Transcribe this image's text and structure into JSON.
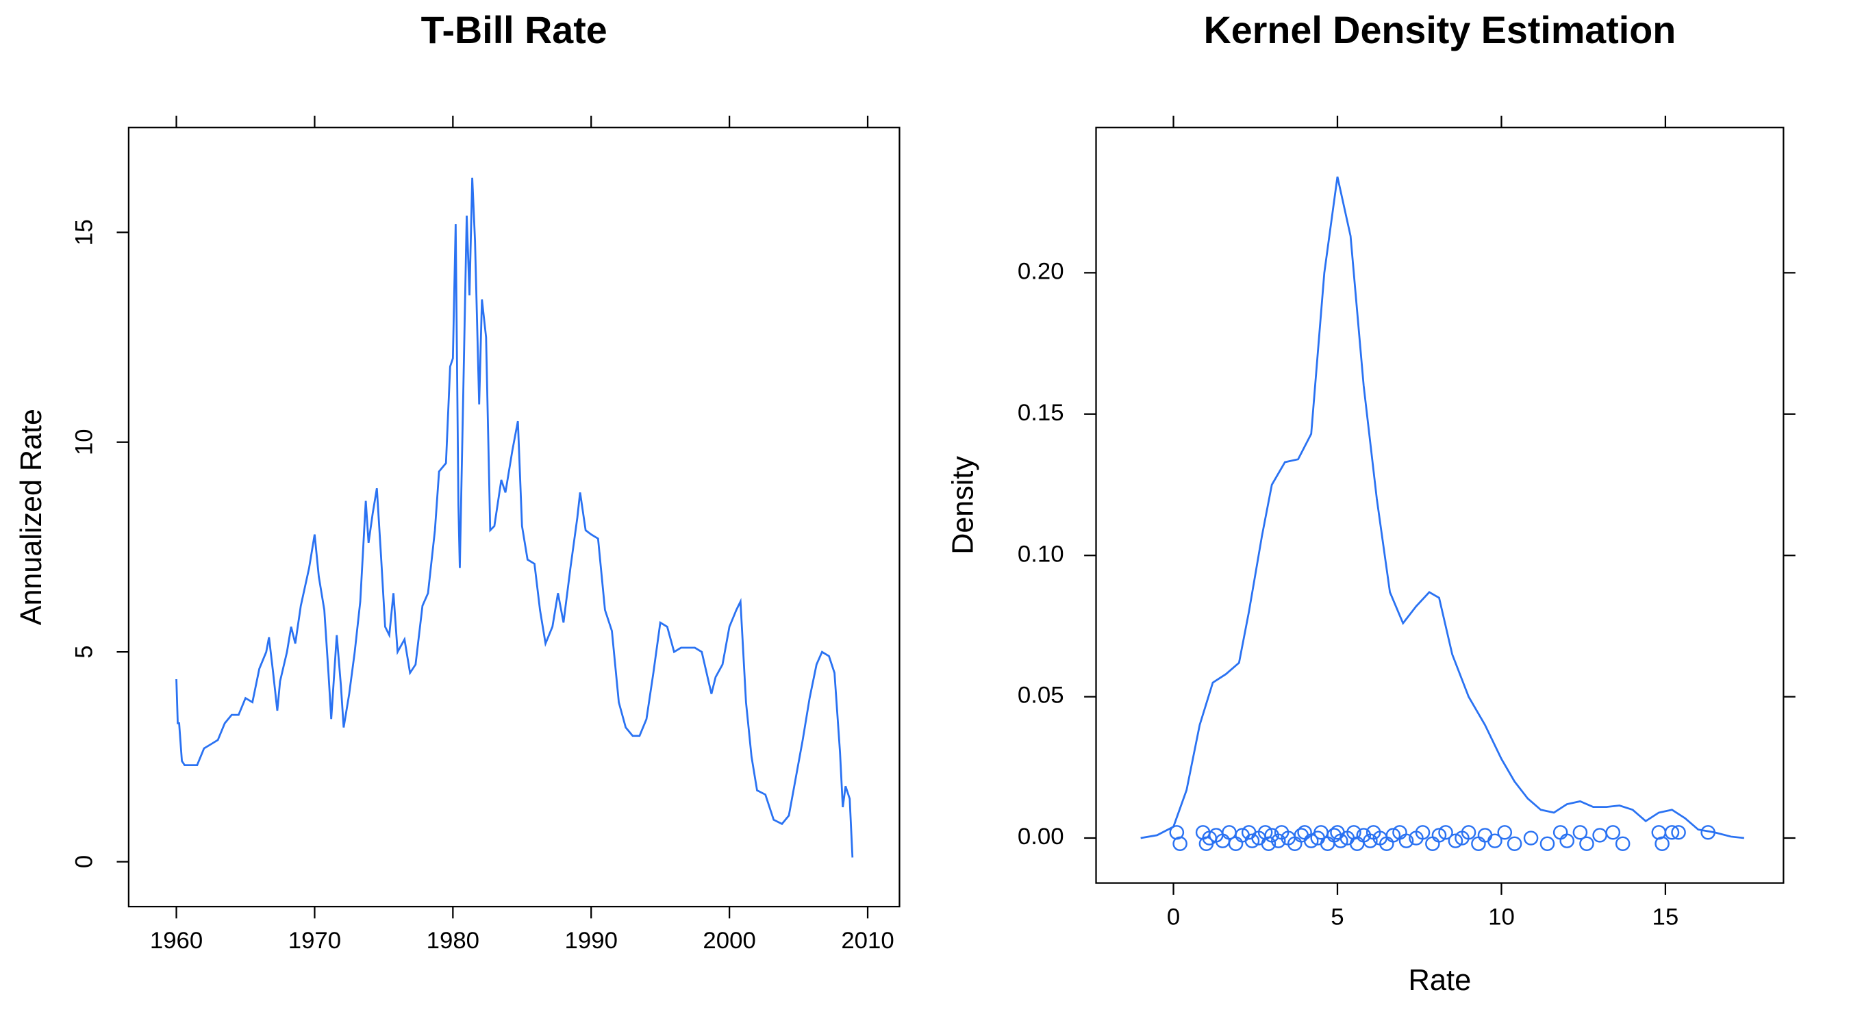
{
  "chart_data": [
    {
      "type": "line",
      "title": "T-Bill Rate",
      "ylabel": "Annualized Rate",
      "color": "#2a72f2",
      "x": [
        1960.0,
        1960.1,
        1960.2,
        1960.4,
        1960.6,
        1961,
        1961.5,
        1962,
        1962.5,
        1963,
        1963.5,
        1964,
        1964.5,
        1965,
        1965.5,
        1966,
        1966.5,
        1966.7,
        1967,
        1967.3,
        1967.5,
        1968,
        1968.3,
        1968.6,
        1969,
        1969.6,
        1970,
        1970.3,
        1970.7,
        1971,
        1971.2,
        1971.6,
        1971.9,
        1972.1,
        1972.5,
        1972.9,
        1973.3,
        1973.7,
        1973.9,
        1974.2,
        1974.5,
        1974.8,
        1975.1,
        1975.4,
        1975.7,
        1976,
        1976.5,
        1976.9,
        1977.3,
        1977.8,
        1978.2,
        1978.7,
        1979,
        1979.5,
        1979.8,
        1980.0,
        1980.2,
        1980.4,
        1980.5,
        1980.8,
        1981.0,
        1981.2,
        1981.4,
        1981.6,
        1981.9,
        1982.1,
        1982.4,
        1982.7,
        1983,
        1983.5,
        1983.8,
        1984.3,
        1984.7,
        1985,
        1985.4,
        1985.9,
        1986.3,
        1986.7,
        1987.2,
        1987.6,
        1988,
        1988.5,
        1989,
        1989.2,
        1989.6,
        1990,
        1990.5,
        1991,
        1991.5,
        1992,
        1992.5,
        1993,
        1993.5,
        1994,
        1994.5,
        1995,
        1995.5,
        1996,
        1996.5,
        1997,
        1997.5,
        1998,
        1998.7,
        1999,
        1999.5,
        2000,
        2000.5,
        2000.8,
        2001.2,
        2001.6,
        2002,
        2002.6,
        2003.2,
        2003.8,
        2004.3,
        2004.8,
        2005.3,
        2005.8,
        2006.3,
        2006.7,
        2007.2,
        2007.6,
        2008,
        2008.2,
        2008.4,
        2008.7,
        2008.9
      ],
      "values": [
        4.35,
        3.3,
        3.3,
        2.4,
        2.3,
        2.3,
        2.3,
        2.7,
        2.8,
        2.9,
        3.3,
        3.5,
        3.5,
        3.9,
        3.8,
        4.6,
        5.0,
        5.35,
        4.5,
        3.6,
        4.3,
        5.0,
        5.6,
        5.2,
        6.1,
        7.0,
        7.8,
        6.8,
        6.0,
        4.5,
        3.4,
        5.4,
        4.2,
        3.2,
        4.0,
        5.0,
        6.2,
        8.6,
        7.6,
        8.3,
        8.9,
        7.3,
        5.6,
        5.4,
        6.4,
        5.0,
        5.3,
        4.5,
        4.7,
        6.1,
        6.4,
        7.9,
        9.3,
        9.5,
        11.8,
        12.0,
        15.2,
        8.5,
        7.0,
        12.0,
        15.4,
        13.5,
        16.3,
        14.8,
        10.9,
        13.4,
        12.5,
        7.9,
        8.0,
        9.1,
        8.8,
        9.8,
        10.5,
        8.0,
        7.2,
        7.1,
        6.0,
        5.2,
        5.6,
        6.4,
        5.7,
        7.0,
        8.2,
        8.8,
        7.9,
        7.8,
        7.7,
        6.0,
        5.5,
        3.8,
        3.2,
        3.0,
        3.0,
        3.4,
        4.5,
        5.7,
        5.6,
        5.0,
        5.1,
        5.1,
        5.1,
        5.0,
        4.0,
        4.4,
        4.7,
        5.6,
        6.0,
        6.2,
        3.8,
        2.5,
        1.7,
        1.6,
        1.0,
        0.9,
        1.1,
        2.0,
        2.9,
        3.9,
        4.7,
        5.0,
        4.9,
        4.5,
        2.6,
        1.3,
        1.8,
        1.5,
        0.1
      ],
      "xlim": [
        1956.55,
        2012.3
      ],
      "xticks": [
        1960,
        1970,
        1980,
        1990,
        2000,
        2010
      ],
      "ylim": [
        -1.07,
        17.5
      ],
      "yticks": [
        0,
        5,
        10,
        15
      ]
    },
    {
      "type": "density",
      "title": "Kernel Density Estimation",
      "xlabel": "Rate",
      "ylabel": "Density",
      "color": "#2a72f2",
      "x": [
        -1,
        -0.5,
        0,
        0.4,
        0.8,
        1.2,
        1.6,
        2,
        2.3,
        2.7,
        3,
        3.4,
        3.8,
        4.2,
        4.6,
        5,
        5.4,
        5.8,
        6.2,
        6.6,
        7,
        7.4,
        7.8,
        8.1,
        8.5,
        9,
        9.5,
        10,
        10.4,
        10.8,
        11.2,
        11.6,
        12,
        12.4,
        12.8,
        13.2,
        13.6,
        14,
        14.4,
        14.8,
        15.2,
        15.6,
        16,
        16.5,
        17,
        17.4
      ],
      "values": [
        0,
        0.001,
        0.004,
        0.017,
        0.04,
        0.055,
        0.058,
        0.062,
        0.08,
        0.107,
        0.125,
        0.133,
        0.134,
        0.143,
        0.2,
        0.234,
        0.213,
        0.16,
        0.12,
        0.087,
        0.076,
        0.082,
        0.087,
        0.085,
        0.065,
        0.05,
        0.04,
        0.028,
        0.02,
        0.014,
        0.01,
        0.009,
        0.012,
        0.013,
        0.011,
        0.011,
        0.0115,
        0.01,
        0.006,
        0.009,
        0.01,
        0.007,
        0.003,
        0.002,
        0.0005,
        0
      ],
      "rug": {
        "x": [
          0.1,
          0.2,
          0.9,
          1.0,
          1.1,
          1.3,
          1.5,
          1.7,
          1.9,
          2.1,
          2.3,
          2.4,
          2.6,
          2.8,
          2.9,
          3.0,
          3.2,
          3.3,
          3.5,
          3.7,
          3.9,
          4.0,
          4.2,
          4.4,
          4.5,
          4.7,
          4.9,
          5.0,
          5.1,
          5.3,
          5.5,
          5.6,
          5.8,
          6.0,
          6.1,
          6.3,
          6.5,
          6.7,
          6.9,
          7.1,
          7.4,
          7.6,
          7.9,
          8.1,
          8.3,
          8.6,
          8.8,
          9.0,
          9.3,
          9.5,
          9.8,
          10.1,
          10.4,
          10.9,
          11.4,
          11.8,
          12.0,
          12.4,
          12.6,
          13.0,
          13.4,
          13.7,
          14.8,
          14.9,
          15.2,
          15.4,
          16.3
        ],
        "y": [
          0.002,
          -0.002,
          0.002,
          -0.002,
          0,
          0.001,
          -0.001,
          0.002,
          -0.002,
          0.001,
          0.002,
          -0.001,
          0,
          0.002,
          -0.002,
          0.001,
          -0.001,
          0.002,
          0,
          -0.002,
          0.001,
          0.002,
          -0.001,
          0,
          0.002,
          -0.002,
          0.001,
          0.002,
          -0.001,
          0,
          0.002,
          -0.002,
          0.001,
          -0.001,
          0.002,
          0,
          -0.002,
          0.001,
          0.002,
          -0.001,
          0,
          0.002,
          -0.002,
          0.001,
          0.002,
          -0.001,
          0,
          0.002,
          -0.002,
          0.001,
          -0.001,
          0.002,
          -0.002,
          0,
          -0.002,
          0.002,
          -0.001,
          0.002,
          -0.002,
          0.001,
          0.002,
          -0.002,
          0.002,
          -0.002,
          0.002,
          0.002,
          0.002
        ]
      },
      "xlim": [
        -2.36,
        18.6
      ],
      "xticks": [
        0,
        5,
        10,
        15
      ],
      "ylim": [
        -0.0159,
        0.2514
      ],
      "yticks": [
        {
          "value": 0,
          "label": "0.00"
        },
        0.05,
        {
          "value": 0.1,
          "label": "0.10"
        },
        0.15,
        {
          "value": 0.2,
          "label": "0.20"
        }
      ]
    }
  ]
}
